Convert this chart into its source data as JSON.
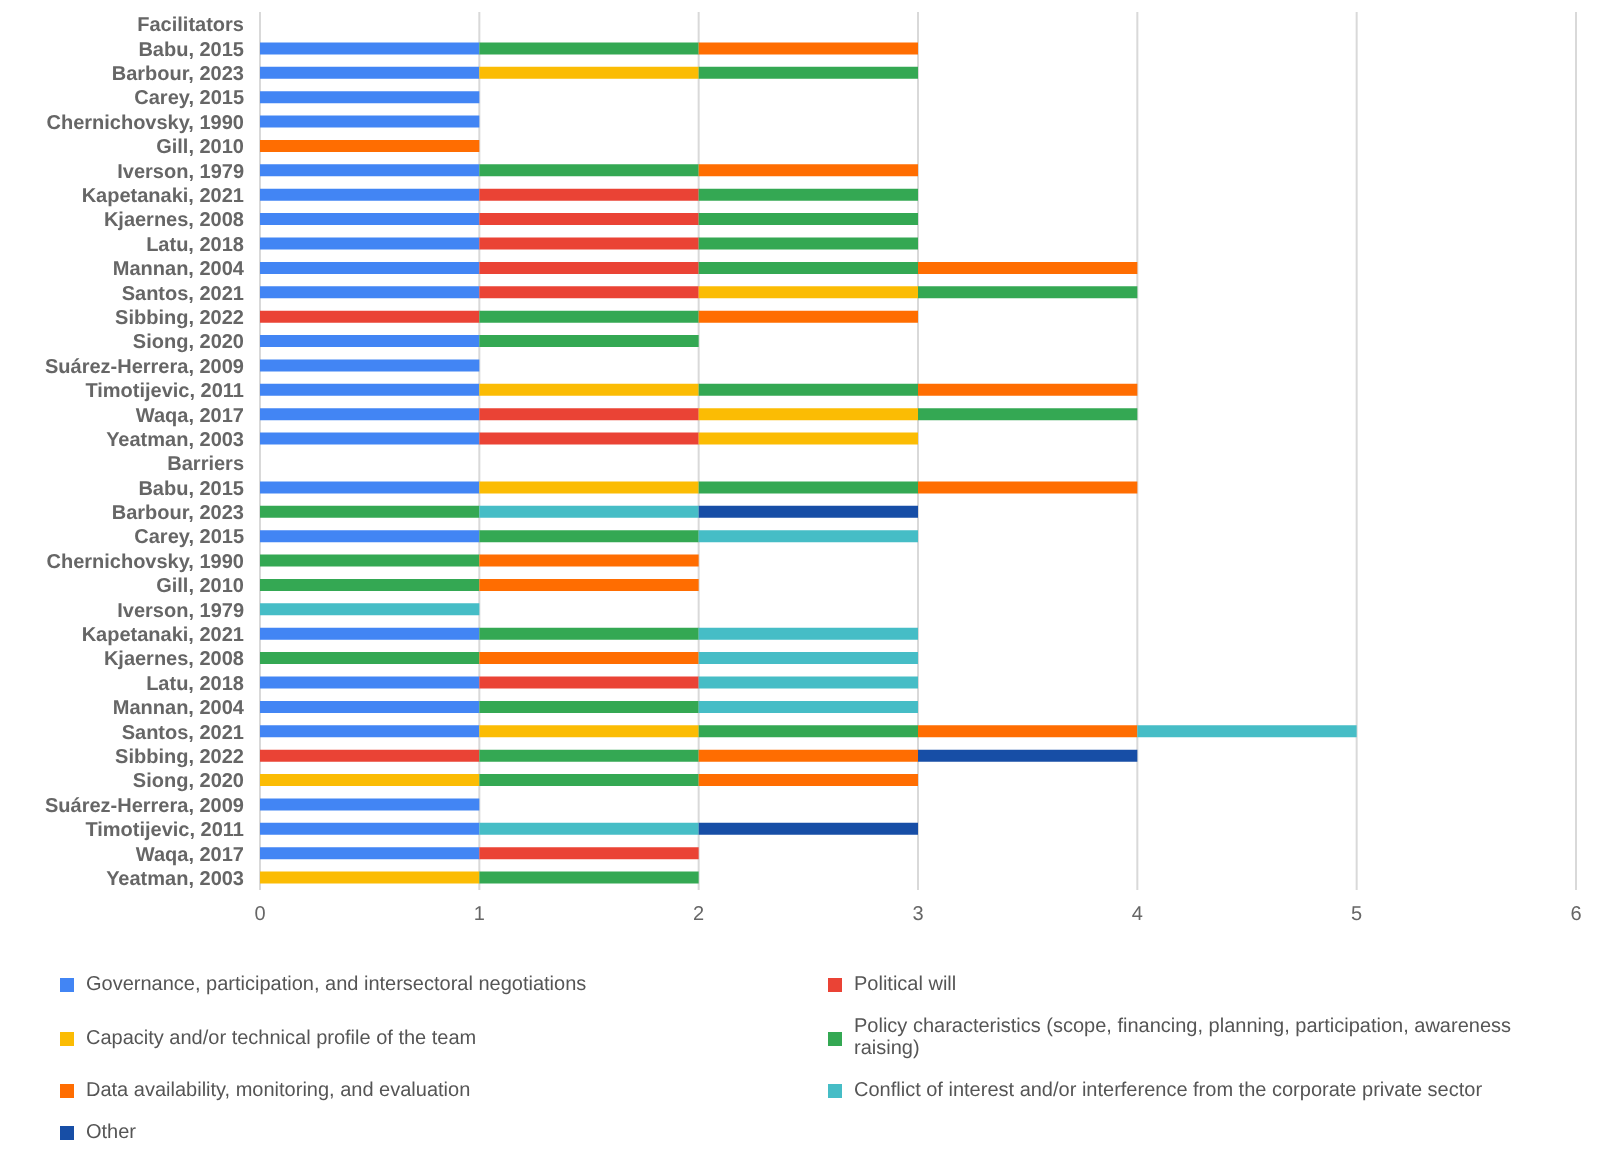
{
  "chart_data": {
    "type": "bar",
    "orientation": "horizontal",
    "stacked": true,
    "grid": "x",
    "legend": "bottom",
    "categories": [
      "Facilitators",
      "Babu, 2015",
      "Barbour, 2023",
      "Carey, 2015",
      "Chernichovsky, 1990",
      "Gill, 2010",
      "Iverson, 1979",
      "Kapetanaki, 2021",
      "Kjaernes, 2008",
      "Latu, 2018",
      "Mannan, 2004",
      "Santos, 2021",
      "Sibbing, 2022",
      "Siong, 2020",
      "Suárez-Herrera, 2009",
      "Timotijevic, 2011",
      "Waqa, 2017",
      "Yeatman, 2003",
      "Barriers",
      "Babu, 2015",
      "Barbour, 2023",
      "Carey, 2015",
      "Chernichovsky, 1990",
      "Gill, 2010",
      "Iverson, 1979",
      "Kapetanaki, 2021",
      "Kjaernes, 2008",
      "Latu, 2018",
      "Mannan, 2004",
      "Santos, 2021",
      "Sibbing, 2022",
      "Siong, 2020",
      "Suárez-Herrera, 2009",
      "Timotijevic, 2011",
      "Waqa, 2017",
      "Yeatman, 2003"
    ],
    "xlim": [
      0,
      6
    ],
    "xticks": [
      0,
      1,
      2,
      3,
      4,
      5,
      6
    ],
    "series": [
      {
        "name": "Governance, participation, and intersectoral negotiations",
        "color": "#4285f4",
        "values": [
          null,
          1,
          1,
          1,
          1,
          null,
          1,
          1,
          1,
          1,
          1,
          1,
          null,
          1,
          1,
          1,
          1,
          1,
          null,
          1,
          null,
          1,
          null,
          null,
          null,
          1,
          null,
          1,
          1,
          1,
          null,
          null,
          1,
          1,
          1,
          null
        ]
      },
      {
        "name": "Political will",
        "color": "#ea4335",
        "values": [
          null,
          null,
          null,
          null,
          null,
          null,
          null,
          1,
          1,
          1,
          1,
          1,
          1,
          null,
          null,
          null,
          1,
          1,
          null,
          null,
          null,
          null,
          null,
          null,
          null,
          null,
          null,
          1,
          null,
          null,
          1,
          null,
          null,
          null,
          1,
          null
        ]
      },
      {
        "name": "Capacity and/or technical profile of the team",
        "color": "#fbbc04",
        "values": [
          null,
          null,
          1,
          null,
          null,
          null,
          null,
          null,
          null,
          null,
          null,
          1,
          null,
          null,
          null,
          1,
          1,
          1,
          null,
          1,
          null,
          null,
          null,
          null,
          null,
          null,
          null,
          null,
          null,
          1,
          null,
          1,
          null,
          null,
          null,
          1
        ]
      },
      {
        "name": "Policy characteristics (scope, financing, planning, participation, awareness raising)",
        "color": "#34a853",
        "values": [
          null,
          1,
          1,
          null,
          null,
          null,
          1,
          1,
          1,
          1,
          1,
          1,
          1,
          1,
          null,
          1,
          1,
          null,
          null,
          1,
          1,
          1,
          1,
          1,
          null,
          1,
          1,
          null,
          1,
          1,
          1,
          1,
          null,
          null,
          null,
          1
        ]
      },
      {
        "name": "Data availability, monitoring, and evaluation",
        "color": "#ff6d01",
        "values": [
          null,
          1,
          null,
          null,
          null,
          1,
          1,
          null,
          null,
          null,
          1,
          null,
          1,
          null,
          null,
          1,
          null,
          null,
          null,
          1,
          null,
          null,
          1,
          1,
          null,
          null,
          1,
          null,
          null,
          1,
          1,
          1,
          null,
          null,
          null,
          null
        ]
      },
      {
        "name": "Conflict of interest and/or interference from the corporate private sector",
        "color": "#46bdc6",
        "values": [
          null,
          null,
          null,
          null,
          null,
          null,
          null,
          null,
          null,
          null,
          null,
          null,
          null,
          null,
          null,
          null,
          null,
          null,
          null,
          null,
          1,
          1,
          null,
          null,
          1,
          1,
          1,
          1,
          1,
          1,
          null,
          null,
          null,
          1,
          null,
          null
        ]
      },
      {
        "name": "Other",
        "color": "#174ea6",
        "values": [
          null,
          null,
          null,
          null,
          null,
          null,
          null,
          null,
          null,
          null,
          null,
          null,
          null,
          null,
          null,
          null,
          null,
          null,
          null,
          null,
          1,
          null,
          null,
          null,
          null,
          null,
          null,
          null,
          null,
          null,
          1,
          null,
          null,
          1,
          null,
          null
        ]
      }
    ]
  }
}
